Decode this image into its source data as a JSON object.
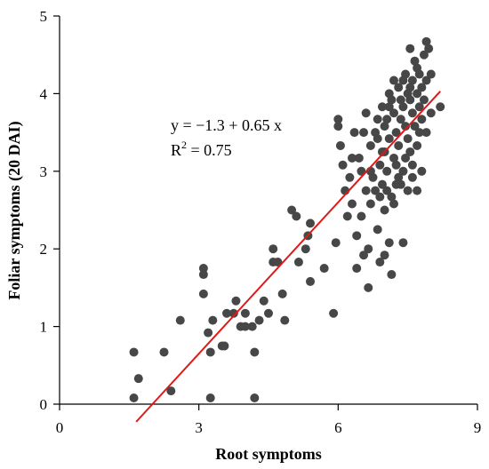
{
  "chart_data": {
    "type": "scatter",
    "title": "",
    "xlabel": "Root symptoms",
    "ylabel": "Foliar symptoms (20 DAI)",
    "xlim": [
      0,
      9
    ],
    "ylim": [
      0,
      5
    ],
    "xticks": [
      "0",
      "3",
      "6",
      "9"
    ],
    "yticks": [
      "0",
      "1",
      "2",
      "3",
      "4",
      "5"
    ],
    "grid": false,
    "legend": "none",
    "colors": {
      "points": "#474747",
      "fit_line": "#e01818",
      "axes": "#000000"
    },
    "annotations": {
      "equation": "y = −1.3 + 0.65 x",
      "r2_prefix": "R",
      "r2_sup": "2",
      "r2_suffix": " = 0.75"
    },
    "fit_line": {
      "intercept": -1.3,
      "slope": 0.65,
      "x_range": [
        1.65,
        8.2
      ]
    },
    "series": [
      {
        "points": [
          [
            1.6,
            0.67
          ],
          [
            1.6,
            0.08
          ],
          [
            1.7,
            0.33
          ],
          [
            2.25,
            0.67
          ],
          [
            2.4,
            0.17
          ],
          [
            2.6,
            1.08
          ],
          [
            3.1,
            1.75
          ],
          [
            3.1,
            1.67
          ],
          [
            3.1,
            1.42
          ],
          [
            3.2,
            0.92
          ],
          [
            3.25,
            0.67
          ],
          [
            3.3,
            1.08
          ],
          [
            3.25,
            0.08
          ],
          [
            3.5,
            0.75
          ],
          [
            3.55,
            0.75
          ],
          [
            3.6,
            1.17
          ],
          [
            3.75,
            1.17
          ],
          [
            3.8,
            1.33
          ],
          [
            3.9,
            1.0
          ],
          [
            4.0,
            1.0
          ],
          [
            4.0,
            1.17
          ],
          [
            4.15,
            1.0
          ],
          [
            4.2,
            0.67
          ],
          [
            4.2,
            0.08
          ],
          [
            4.3,
            1.08
          ],
          [
            4.4,
            1.33
          ],
          [
            4.5,
            1.17
          ],
          [
            4.6,
            1.83
          ],
          [
            4.6,
            2.0
          ],
          [
            4.7,
            1.83
          ],
          [
            4.8,
            1.42
          ],
          [
            4.85,
            1.08
          ],
          [
            5.0,
            2.5
          ],
          [
            5.1,
            2.42
          ],
          [
            5.15,
            1.83
          ],
          [
            5.3,
            2.0
          ],
          [
            5.35,
            2.17
          ],
          [
            5.4,
            1.58
          ],
          [
            5.4,
            2.33
          ],
          [
            5.7,
            1.75
          ],
          [
            5.9,
            1.17
          ],
          [
            5.95,
            2.08
          ],
          [
            6.0,
            3.67
          ],
          [
            6.0,
            3.58
          ],
          [
            6.05,
            3.33
          ],
          [
            6.1,
            3.08
          ],
          [
            6.15,
            2.75
          ],
          [
            6.2,
            2.42
          ],
          [
            6.25,
            2.92
          ],
          [
            6.3,
            2.58
          ],
          [
            6.35,
            3.5
          ],
          [
            6.4,
            2.17
          ],
          [
            6.4,
            1.75
          ],
          [
            6.45,
            3.17
          ],
          [
            6.5,
            3.0
          ],
          [
            6.5,
            2.42
          ],
          [
            6.55,
            3.5
          ],
          [
            6.55,
            1.92
          ],
          [
            6.6,
            3.75
          ],
          [
            6.6,
            2.75
          ],
          [
            6.65,
            2.0
          ],
          [
            6.65,
            1.5
          ],
          [
            6.7,
            3.33
          ],
          [
            6.7,
            2.58
          ],
          [
            6.75,
            2.92
          ],
          [
            6.8,
            3.5
          ],
          [
            6.8,
            2.75
          ],
          [
            6.85,
            3.67
          ],
          [
            6.85,
            2.25
          ],
          [
            6.9,
            3.08
          ],
          [
            6.9,
            2.67
          ],
          [
            6.9,
            1.83
          ],
          [
            6.95,
            3.83
          ],
          [
            6.95,
            3.25
          ],
          [
            7.0,
            2.5
          ],
          [
            7.0,
            1.92
          ],
          [
            7.0,
            3.58
          ],
          [
            7.05,
            3.0
          ],
          [
            7.05,
            2.75
          ],
          [
            7.1,
            4.0
          ],
          [
            7.1,
            3.42
          ],
          [
            7.1,
            2.08
          ],
          [
            7.15,
            2.67
          ],
          [
            7.15,
            1.67
          ],
          [
            7.2,
            4.17
          ],
          [
            7.2,
            3.75
          ],
          [
            7.2,
            3.17
          ],
          [
            7.25,
            3.5
          ],
          [
            7.25,
            2.83
          ],
          [
            7.3,
            4.08
          ],
          [
            7.3,
            3.33
          ],
          [
            7.3,
            2.92
          ],
          [
            7.35,
            3.92
          ],
          [
            7.35,
            3.67
          ],
          [
            7.4,
            3.83
          ],
          [
            7.4,
            3.0
          ],
          [
            7.4,
            2.08
          ],
          [
            7.45,
            4.25
          ],
          [
            7.45,
            3.58
          ],
          [
            7.5,
            4.0
          ],
          [
            7.5,
            3.42
          ],
          [
            7.5,
            2.75
          ],
          [
            7.55,
            4.58
          ],
          [
            7.55,
            3.92
          ],
          [
            7.55,
            3.25
          ],
          [
            7.6,
            4.17
          ],
          [
            7.6,
            3.75
          ],
          [
            7.6,
            3.08
          ],
          [
            7.65,
            4.42
          ],
          [
            7.65,
            3.58
          ],
          [
            7.7,
            4.33
          ],
          [
            7.7,
            4.0
          ],
          [
            7.7,
            3.33
          ],
          [
            7.7,
            2.75
          ],
          [
            7.75,
            4.25
          ],
          [
            7.75,
            3.83
          ],
          [
            7.8,
            4.08
          ],
          [
            7.8,
            3.67
          ],
          [
            7.8,
            3.0
          ],
          [
            7.85,
            4.5
          ],
          [
            7.85,
            3.92
          ],
          [
            7.9,
            4.67
          ],
          [
            7.9,
            4.17
          ],
          [
            7.9,
            3.5
          ],
          [
            7.95,
            4.58
          ],
          [
            8.0,
            4.25
          ],
          [
            8.0,
            3.75
          ],
          [
            8.2,
            3.83
          ],
          [
            6.3,
            3.17
          ],
          [
            6.7,
            3.0
          ],
          [
            6.95,
            2.83
          ],
          [
            7.05,
            3.67
          ],
          [
            7.15,
            3.92
          ],
          [
            7.25,
            3.08
          ],
          [
            7.35,
            2.83
          ],
          [
            7.45,
            3.17
          ],
          [
            7.6,
            2.92
          ],
          [
            7.0,
            3.25
          ],
          [
            7.1,
            3.83
          ],
          [
            7.2,
            2.58
          ],
          [
            7.4,
            4.17
          ],
          [
            7.55,
            4.08
          ],
          [
            7.75,
            3.5
          ],
          [
            6.85,
            3.42
          ]
        ]
      }
    ]
  }
}
